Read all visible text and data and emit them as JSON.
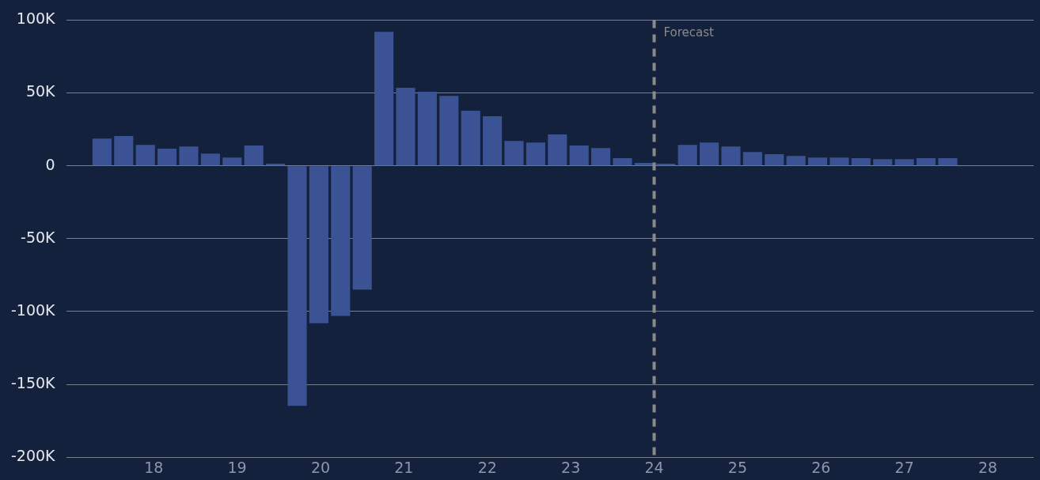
{
  "chart_data": {
    "type": "bar",
    "x": [
      17.38,
      17.64,
      17.9,
      18.16,
      18.42,
      18.68,
      18.94,
      19.2,
      19.46,
      19.72,
      19.98,
      20.24,
      20.5,
      20.76,
      21.02,
      21.28,
      21.54,
      21.8,
      22.06,
      22.32,
      22.58,
      22.84,
      23.1,
      23.36,
      23.62,
      23.88,
      24.14,
      24.4,
      24.66,
      24.92,
      25.18,
      25.44,
      25.7,
      25.96,
      26.22,
      26.48,
      26.74,
      27.0,
      27.26,
      27.52
    ],
    "values": [
      18700,
      20400,
      14400,
      11700,
      13300,
      8400,
      5700,
      13900,
      1400,
      -164800,
      -108000,
      -103000,
      -85000,
      92000,
      53500,
      50800,
      48000,
      37800,
      34000,
      17100,
      16000,
      21500,
      13900,
      12200,
      5200,
      2000,
      1400,
      14400,
      16000,
      13300,
      9500,
      7900,
      6800,
      5700,
      5700,
      5200,
      4600,
      4600,
      5200,
      5200
    ],
    "color": "#3b5394",
    "xlim": [
      16.95,
      28.55
    ],
    "xticks": [
      18,
      19,
      20,
      21,
      22,
      23,
      24,
      25,
      26,
      27,
      28
    ],
    "ylim": [
      -200000,
      100000
    ],
    "yticks": [
      {
        "value": -200000,
        "label": "-200K"
      },
      {
        "value": -150000,
        "label": "-150K"
      },
      {
        "value": -100000,
        "label": "-100K"
      },
      {
        "value": -50000,
        "label": "-50K"
      },
      {
        "value": 0,
        "label": "0"
      },
      {
        "value": 50000,
        "label": "50K"
      },
      {
        "value": 100000,
        "label": "100K"
      }
    ],
    "grid": "y",
    "legend": false,
    "ref_lines": [
      {
        "axis": "x",
        "value": 24,
        "label": "Forecast",
        "color": "#8a8a8a",
        "line_style": "dashed"
      }
    ]
  }
}
